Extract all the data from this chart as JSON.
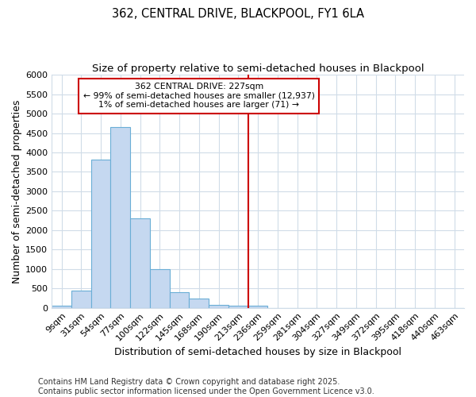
{
  "title1": "362, CENTRAL DRIVE, BLACKPOOL, FY1 6LA",
  "title2": "Size of property relative to semi-detached houses in Blackpool",
  "xlabel": "Distribution of semi-detached houses by size in Blackpool",
  "ylabel": "Number of semi-detached properties",
  "categories": [
    "9sqm",
    "31sqm",
    "54sqm",
    "77sqm",
    "100sqm",
    "122sqm",
    "145sqm",
    "168sqm",
    "190sqm",
    "213sqm",
    "236sqm",
    "259sqm",
    "281sqm",
    "304sqm",
    "327sqm",
    "349sqm",
    "372sqm",
    "395sqm",
    "418sqm",
    "440sqm",
    "463sqm"
  ],
  "values": [
    50,
    450,
    3820,
    4650,
    2300,
    1000,
    400,
    230,
    80,
    65,
    60,
    0,
    0,
    0,
    0,
    0,
    0,
    0,
    0,
    0,
    0
  ],
  "bar_color": "#c5d8f0",
  "bar_edge_color": "#6aaed6",
  "vline_x_idx": 10,
  "vline_color": "#cc0000",
  "ylim": [
    0,
    6000
  ],
  "yticks": [
    0,
    500,
    1000,
    1500,
    2000,
    2500,
    3000,
    3500,
    4000,
    4500,
    5000,
    5500,
    6000
  ],
  "annotation_text": "362 CENTRAL DRIVE: 227sqm\n← 99% of semi-detached houses are smaller (12,937)\n1% of semi-detached houses are larger (71) →",
  "footer": "Contains HM Land Registry data © Crown copyright and database right 2025.\nContains public sector information licensed under the Open Government Licence v3.0.",
  "bg_color": "#ffffff",
  "grid_color": "#d0dce8",
  "title_fontsize": 10.5,
  "subtitle_fontsize": 9.5,
  "axis_label_fontsize": 9,
  "tick_fontsize": 8,
  "footer_fontsize": 7
}
